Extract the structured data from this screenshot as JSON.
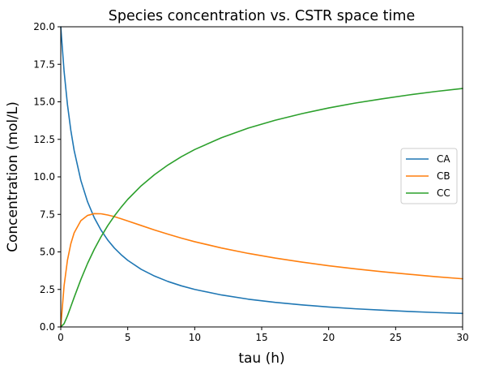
{
  "chart_data": {
    "type": "line",
    "title": "Species concentration vs. CSTR space time",
    "xlabel": "tau (h)",
    "ylabel": "Concentration (mol/L)",
    "xlim": [
      0,
      30
    ],
    "ylim": [
      0,
      20
    ],
    "x_ticks": [
      0,
      5,
      10,
      15,
      20,
      25,
      30
    ],
    "x_tick_labels": [
      "0",
      "5",
      "10",
      "15",
      "20",
      "25",
      "30"
    ],
    "y_ticks": [
      0,
      2.5,
      5,
      7.5,
      10,
      12.5,
      15,
      17.5,
      20
    ],
    "y_tick_labels": [
      "0.0",
      "2.5",
      "5.0",
      "7.5",
      "10.0",
      "12.5",
      "15.0",
      "17.5",
      "20.0"
    ],
    "grid": false,
    "legend_position": "center-right",
    "x": [
      0,
      0.25,
      0.5,
      0.75,
      1,
      1.5,
      2,
      2.5,
      3,
      3.5,
      4,
      4.5,
      5,
      6,
      7,
      8,
      9,
      10,
      12,
      14,
      16,
      18,
      20,
      22,
      24,
      26,
      28,
      30
    ],
    "series": [
      {
        "name": "CA",
        "color": "#1f77b4",
        "values": [
          20,
          17.02,
          14.81,
          13.11,
          11.76,
          9.76,
          8.34,
          7.28,
          6.46,
          5.8,
          5.26,
          4.82,
          4.44,
          3.84,
          3.39,
          3.03,
          2.74,
          2.5,
          2.13,
          1.85,
          1.64,
          1.47,
          1.33,
          1.21,
          1.12,
          1.03,
          0.96,
          0.9
        ]
      },
      {
        "name": "CB",
        "color": "#ff7f0e",
        "values": [
          0,
          2.76,
          4.45,
          5.54,
          6.27,
          7.08,
          7.43,
          7.55,
          7.54,
          7.46,
          7.35,
          7.21,
          7.06,
          6.76,
          6.46,
          6.18,
          5.92,
          5.68,
          5.26,
          4.9,
          4.59,
          4.32,
          4.08,
          3.87,
          3.68,
          3.51,
          3.35,
          3.21
        ]
      },
      {
        "name": "CC",
        "color": "#2ca02c",
        "values": [
          0,
          0.22,
          0.74,
          1.35,
          1.97,
          3.16,
          4.23,
          5.17,
          6.0,
          6.74,
          7.39,
          7.97,
          8.5,
          9.4,
          10.15,
          10.79,
          11.34,
          11.82,
          12.61,
          13.25,
          13.77,
          14.21,
          14.59,
          14.92,
          15.2,
          15.46,
          15.69,
          15.89
        ]
      }
    ]
  }
}
